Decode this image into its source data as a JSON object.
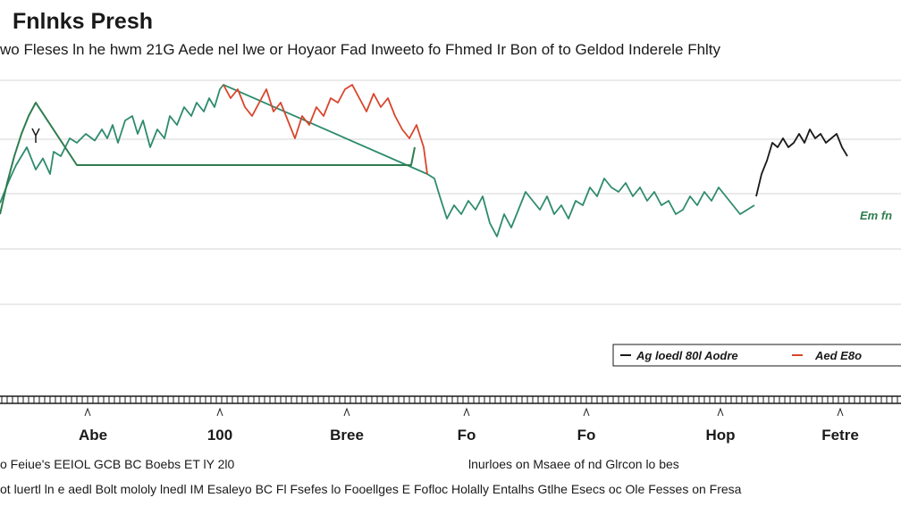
{
  "chart_data": {
    "type": "line",
    "title": "Fnlnks Presh",
    "subtitle": "wo Fleses ln he hwm 21G Aede nel lwe or Hoyaor Fad Inweeto fo Fhmed Ir Bon of to Geldod Inderele Fhlty",
    "xlabel": "",
    "ylabel": "",
    "ylim": [
      0,
      100
    ],
    "grid": true,
    "categories": [
      "Abe",
      "100",
      "Bree",
      "Fo",
      "Fo",
      "Hop",
      "Fetre"
    ],
    "series": [
      {
        "name": "Ag loedl 80l Aodre",
        "color": "#2e8b6e",
        "x": [
          0,
          10,
          18,
          30,
          40,
          48,
          56,
          60,
          68,
          78,
          86,
          96,
          106,
          114,
          120,
          126,
          132,
          140,
          148,
          154,
          160,
          168,
          176,
          184,
          190,
          198,
          206,
          214,
          220,
          228,
          234,
          240,
          246,
          250,
          478,
          486,
          492,
          500,
          508,
          516,
          524,
          532,
          540,
          548,
          556,
          564,
          572,
          580,
          588,
          596,
          604,
          612,
          620,
          628,
          636,
          644,
          652,
          660,
          668,
          676,
          684,
          692,
          700,
          708,
          716,
          724,
          732,
          740,
          748,
          756,
          764,
          772,
          780,
          788,
          796,
          804,
          812,
          820,
          828,
          836,
          844
        ],
        "y": [
          45,
          55,
          62,
          70,
          60,
          65,
          58,
          68,
          66,
          74,
          72,
          76,
          73,
          78,
          74,
          80,
          72,
          82,
          84,
          76,
          82,
          70,
          78,
          74,
          84,
          80,
          88,
          84,
          90,
          86,
          92,
          88,
          96,
          98,
          58,
          56,
          48,
          38,
          44,
          40,
          46,
          42,
          48,
          36,
          30,
          40,
          34,
          42,
          50,
          46,
          42,
          48,
          40,
          44,
          38,
          46,
          44,
          52,
          48,
          56,
          52,
          50,
          54,
          48,
          52,
          46,
          50,
          44,
          46,
          40,
          42,
          48,
          44,
          50,
          46,
          52,
          48,
          44,
          40,
          42,
          44
        ]
      },
      {
        "name": "Aed E8o",
        "color": "#d9452b",
        "x": [
          250,
          258,
          266,
          274,
          282,
          290,
          298,
          306,
          314,
          322,
          330,
          338,
          346,
          354,
          362,
          370,
          378,
          386,
          394,
          402,
          410,
          418,
          426,
          434,
          442,
          450,
          458,
          466,
          474,
          478
        ],
        "y": [
          98,
          92,
          96,
          88,
          84,
          90,
          96,
          86,
          90,
          82,
          74,
          84,
          80,
          88,
          84,
          92,
          90,
          96,
          98,
          92,
          86,
          94,
          88,
          92,
          84,
          78,
          74,
          80,
          70,
          58
        ]
      },
      {
        "name": "",
        "color": "#1a1a1a",
        "x": [
          846,
          852,
          858,
          864,
          870,
          876,
          882,
          888,
          894,
          900,
          906,
          912,
          918,
          924,
          930,
          936,
          942,
          948
        ],
        "y": [
          48,
          58,
          64,
          72,
          70,
          74,
          70,
          72,
          76,
          72,
          78,
          74,
          76,
          72,
          74,
          76,
          70,
          66
        ]
      },
      {
        "name": "",
        "color": "#2e7d4f",
        "x": [
          0,
          8,
          16,
          24,
          32,
          40,
          86,
          460,
          464
        ],
        "y": [
          40,
          54,
          66,
          76,
          84,
          90,
          62,
          62,
          70
        ]
      }
    ],
    "flat_line": {
      "color": "#2e7d4f",
      "y": 62
    },
    "end_label": "Em fn",
    "legend": {
      "placement": "bottom-right",
      "entries": [
        "Ag loedl 80l Aodre",
        "Aed E8o"
      ]
    }
  },
  "footer": {
    "line1_left": "o Feiue's EEIOL GCB BC Boebs ET lY 2l0",
    "line1_right": "lnurloes on Msaee of nd Glrcon lo bes",
    "line2": "ot luertl ln e aedl Bolt mololy lnedl IM Esaleyo BC Fl Fsefes lo Fooellges E Fofloc Holally Entalhs Gtlhe Esecs oc Ole Fesses on Fresa"
  },
  "colors": {
    "grid": "#d6d6d6",
    "axis": "#1a1a1a",
    "background": "#ffffff"
  }
}
